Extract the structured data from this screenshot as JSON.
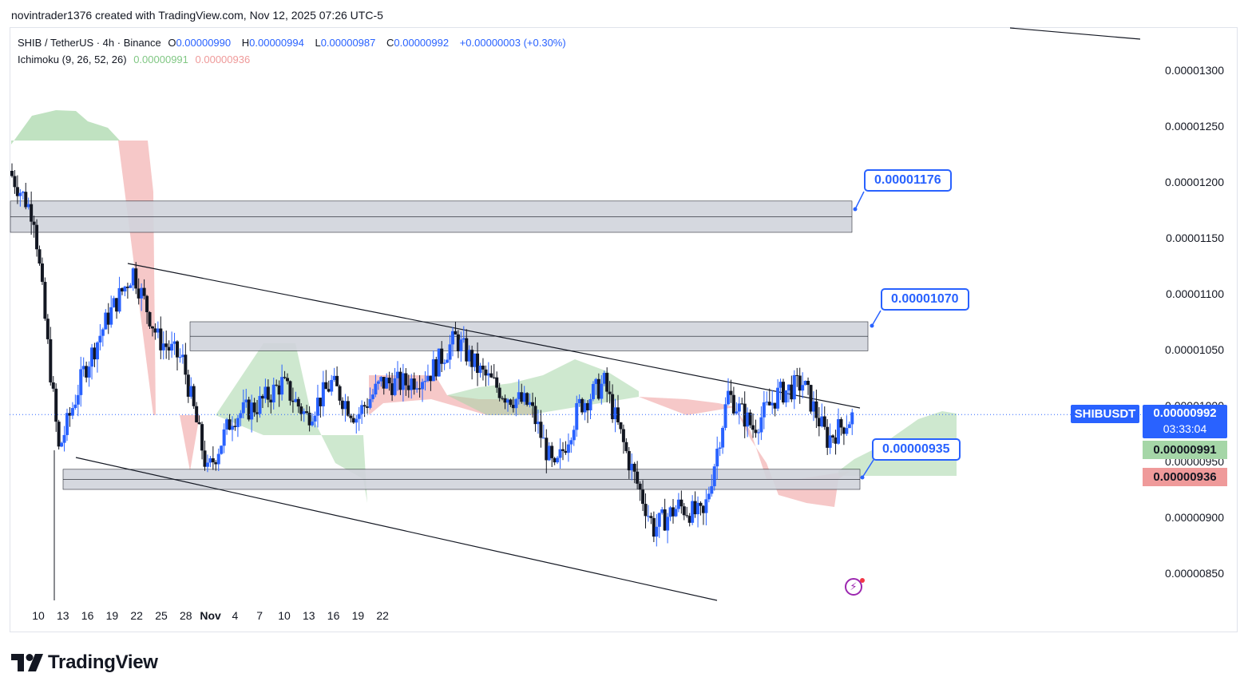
{
  "header": {
    "attribution": "novintrader1376 created with TradingView.com, Nov 12, 2025 07:26 UTC-5"
  },
  "legend": {
    "symbol_line": "SHIB / TetherUS · 4h · Binance",
    "open_label": "O",
    "open": "0.00000990",
    "high_label": "H",
    "high": "0.00000994",
    "low_label": "L",
    "low": "0.00000987",
    "close_label": "C",
    "close": "0.00000992",
    "change": "+0.00000003 (+0.30%)",
    "indicator": "Ichimoku (9, 26, 52, 26)",
    "ind_val1": "0.00000991",
    "ind_val2": "0.00000936"
  },
  "callouts": {
    "level_top": "0.00001176",
    "level_mid": "0.00001070",
    "level_low": "0.00000935"
  },
  "price_axis": {
    "labels": [
      "0.00001300",
      "0.00001250",
      "0.00001200",
      "0.00001150",
      "0.00001100",
      "0.00001050",
      "0.00001000",
      "0.00000950",
      "0.00000900",
      "0.00000850"
    ]
  },
  "time_axis": {
    "labels": [
      "10",
      "13",
      "16",
      "19",
      "22",
      "25",
      "28",
      "Nov",
      "4",
      "7",
      "10",
      "13",
      "16",
      "19",
      "22"
    ]
  },
  "tags": {
    "symbol": "SHIBUSDT",
    "price": "0.00000992",
    "countdown": "03:33:04",
    "ichimoku_green": "0.00000991",
    "ichimoku_red": "0.00000936"
  },
  "branding": {
    "name": "TradingView"
  },
  "colors": {
    "up": "#2962ff",
    "down": "#131722",
    "cloud_bull": "#a5d6a7",
    "cloud_bear": "#ef9a9a",
    "zone": "#d1d4dc",
    "accent": "#2962ff"
  },
  "chart_data": {
    "type": "candlestick",
    "symbol": "SHIB / TetherUS",
    "timeframe": "4h",
    "exchange": "Binance",
    "ylim": [
      8.2e-06,
      1.34e-05
    ],
    "x_ticks": [
      "10",
      "13",
      "16",
      "19",
      "22",
      "25",
      "28",
      "Nov",
      "4",
      "7",
      "10",
      "13",
      "16",
      "19",
      "22"
    ],
    "price_path": [
      [
        "10",
        1.21e-05
      ],
      [
        "10",
        1.17e-05
      ],
      [
        "11",
        9.6e-06
      ],
      [
        "12",
        1.03e-05
      ],
      [
        "13",
        1.08e-05
      ],
      [
        "14",
        1.12e-05
      ],
      [
        "15",
        1.06e-05
      ],
      [
        "16",
        1.04e-05
      ],
      [
        "17",
        9.4e-06
      ],
      [
        "18",
        9.9e-06
      ],
      [
        "19",
        1e-05
      ],
      [
        "20",
        1.02e-05
      ],
      [
        "21",
        9.9e-06
      ],
      [
        "22",
        1.02e-05
      ],
      [
        "23",
        9.9e-06
      ],
      [
        "24",
        1.02e-05
      ],
      [
        "25",
        1.02e-05
      ],
      [
        "26",
        1.03e-05
      ],
      [
        "27",
        1.06e-05
      ],
      [
        "28",
        1.03e-05
      ],
      [
        "29",
        1.01e-05
      ],
      [
        "30",
        1e-05
      ],
      [
        "31",
        9.4e-06
      ],
      [
        "Nov",
        1e-05
      ],
      [
        "2",
        1.02e-05
      ],
      [
        "3",
        9.5e-06
      ],
      [
        "4",
        8.9e-06
      ],
      [
        "5",
        9.1e-06
      ],
      [
        "6",
        9e-06
      ],
      [
        "7",
        1.01e-05
      ],
      [
        "8",
        9.8e-06
      ],
      [
        "9",
        1.01e-05
      ],
      [
        "10",
        1.02e-05
      ],
      [
        "11",
        9.7e-06
      ],
      [
        "12",
        9.9e-06
      ]
    ],
    "zones": [
      {
        "from": 1.155e-05,
        "to": 1.183e-05
      },
      {
        "from": 1.049e-05,
        "to": 1.075e-05
      },
      {
        "from": 9.25e-06,
        "to": 9.43e-06
      }
    ],
    "annotated_levels": [
      1.176e-05,
      1.07e-05,
      9.35e-06
    ],
    "last_price": 9.92e-06,
    "ichimoku": {
      "params": [
        9,
        26,
        52,
        26
      ],
      "span_a": 9.91e-06,
      "span_b": 9.36e-06
    }
  }
}
